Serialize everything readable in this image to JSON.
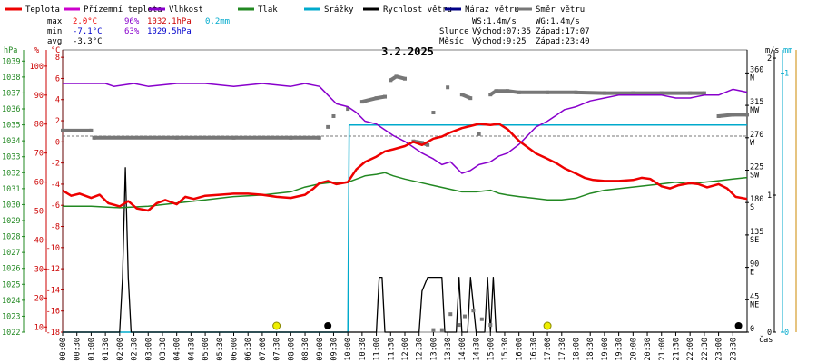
{
  "chart_data": {
    "type": "line",
    "title": "3.2.2025",
    "x_unit_label": "čas",
    "x_ticks": [
      "00:00",
      "00:30",
      "01:00",
      "01:30",
      "02:00",
      "02:30",
      "03:00",
      "03:30",
      "04:00",
      "04:30",
      "05:00",
      "05:30",
      "06:00",
      "06:30",
      "07:00",
      "07:30",
      "08:00",
      "08:30",
      "09:00",
      "09:30",
      "10:00",
      "10:30",
      "11:00",
      "11:30",
      "12:00",
      "12:30",
      "13:00",
      "13:30",
      "14:00",
      "14:30",
      "15:00",
      "15:30",
      "16:00",
      "16:30",
      "17:00",
      "17:30",
      "18:00",
      "18:30",
      "19:00",
      "19:30",
      "20:00",
      "20:30",
      "21:00",
      "21:30",
      "22:00",
      "22:30",
      "23:00",
      "23:30"
    ],
    "legend": [
      {
        "name": "Teplota",
        "color": "#ee0000"
      },
      {
        "name": "Přízemní teplota",
        "color": "#cc00cc"
      },
      {
        "name": "Vlhkost",
        "color": "#8800cc"
      },
      {
        "name": "Tlak",
        "color": "#228822"
      },
      {
        "name": "Srážky",
        "color": "#00aacc"
      },
      {
        "name": "Rychlost větru",
        "color": "#000000"
      },
      {
        "name": "Náraz větru",
        "color": "#000088"
      },
      {
        "name": "Směr větru",
        "color": "#777777"
      }
    ],
    "stats": {
      "max_label": "max",
      "max_temp": "2.0°C",
      "max_hum": "96%",
      "max_press": "1032.1hPa",
      "max_rain": "0.2mm",
      "min_label": "min",
      "min_temp": "-7.1°C",
      "min_hum": "63%",
      "min_press": "1029.5hPa",
      "avg_label": "avg",
      "avg_temp": "-3.3°C"
    },
    "info": {
      "ws": "WS:1.4m/s",
      "wg": "WG:1.4m/s",
      "sun_label": "Slunce",
      "sunrise": "Východ:07:35",
      "sunset": "Západ:17:07",
      "moon_label": "Měsíc",
      "moonrise": "Východ:9:25",
      "moonset": "Západ:23:40"
    },
    "axes": {
      "pressure": {
        "unit": "hPa",
        "ticks": [
          "1039",
          "1038",
          "1037",
          "1036",
          "1035",
          "1034",
          "1033",
          "1032",
          "1031",
          "1030",
          "1029",
          "1028",
          "1027",
          "1026",
          "1025",
          "1024",
          "1023",
          "1022"
        ]
      },
      "humidity": {
        "unit": "%",
        "ticks": [
          "100",
          "90",
          "80",
          "70",
          "60",
          "50",
          "40",
          "30",
          "20",
          "10"
        ]
      },
      "temperature": {
        "unit": "°C",
        "ticks": [
          "8",
          "6",
          "4",
          "2",
          "0",
          "-2",
          "-4",
          "-6",
          "-8",
          "-10",
          "-12",
          "-14",
          "-16",
          "-18"
        ],
        "range": [
          -18,
          8.7
        ]
      },
      "direction": {
        "ticks": [
          "360",
          "315",
          "270",
          "225",
          "180",
          "135",
          "90",
          "45",
          "0"
        ],
        "cardinal": [
          "N",
          "NW",
          "W",
          "SW",
          "S",
          "SE",
          "E",
          "NE",
          ""
        ]
      },
      "wind": {
        "unit": "m/s",
        "ticks": [
          "2",
          "1",
          "0"
        ]
      },
      "rain": {
        "unit": "mm",
        "ticks": [
          "1",
          "0"
        ]
      }
    },
    "series": {
      "temperature": [
        [
          0,
          -4.6
        ],
        [
          0.3,
          -5.1
        ],
        [
          0.6,
          -4.9
        ],
        [
          1.0,
          -5.3
        ],
        [
          1.3,
          -5.0
        ],
        [
          1.6,
          -5.8
        ],
        [
          2.0,
          -6.1
        ],
        [
          2.3,
          -5.6
        ],
        [
          2.6,
          -6.3
        ],
        [
          3.0,
          -6.5
        ],
        [
          3.3,
          -5.8
        ],
        [
          3.6,
          -5.5
        ],
        [
          4.0,
          -5.9
        ],
        [
          4.3,
          -5.2
        ],
        [
          4.6,
          -5.4
        ],
        [
          5.0,
          -5.1
        ],
        [
          5.5,
          -5.0
        ],
        [
          6.0,
          -4.9
        ],
        [
          6.5,
          -4.9
        ],
        [
          7.0,
          -5.0
        ],
        [
          7.5,
          -5.2
        ],
        [
          8.0,
          -5.3
        ],
        [
          8.5,
          -5.0
        ],
        [
          8.8,
          -4.4
        ],
        [
          9.0,
          -3.9
        ],
        [
          9.3,
          -3.7
        ],
        [
          9.6,
          -4.0
        ],
        [
          10.0,
          -3.8
        ],
        [
          10.3,
          -2.6
        ],
        [
          10.6,
          -1.9
        ],
        [
          11.0,
          -1.4
        ],
        [
          11.3,
          -0.9
        ],
        [
          11.6,
          -0.7
        ],
        [
          12.0,
          -0.4
        ],
        [
          12.3,
          0.0
        ],
        [
          12.6,
          -0.3
        ],
        [
          13.0,
          0.3
        ],
        [
          13.3,
          0.5
        ],
        [
          13.6,
          0.9
        ],
        [
          14.0,
          1.3
        ],
        [
          14.3,
          1.5
        ],
        [
          14.6,
          1.7
        ],
        [
          15.0,
          1.6
        ],
        [
          15.3,
          1.7
        ],
        [
          15.6,
          1.2
        ],
        [
          16.0,
          0.1
        ],
        [
          16.3,
          -0.5
        ],
        [
          16.6,
          -1.1
        ],
        [
          17.0,
          -1.6
        ],
        [
          17.3,
          -2.0
        ],
        [
          17.6,
          -2.5
        ],
        [
          18.0,
          -3.0
        ],
        [
          18.3,
          -3.4
        ],
        [
          18.6,
          -3.6
        ],
        [
          19.0,
          -3.7
        ],
        [
          19.5,
          -3.7
        ],
        [
          20.0,
          -3.6
        ],
        [
          20.3,
          -3.4
        ],
        [
          20.6,
          -3.5
        ],
        [
          21.0,
          -4.2
        ],
        [
          21.3,
          -4.4
        ],
        [
          21.6,
          -4.1
        ],
        [
          22.0,
          -3.9
        ],
        [
          22.3,
          -4.0
        ],
        [
          22.6,
          -4.3
        ],
        [
          23.0,
          -4.0
        ],
        [
          23.3,
          -4.4
        ],
        [
          23.6,
          -5.2
        ],
        [
          24.0,
          -5.4
        ]
      ],
      "humidity": [
        [
          0,
          94
        ],
        [
          1.5,
          94
        ],
        [
          1.8,
          93
        ],
        [
          2.5,
          94
        ],
        [
          3.0,
          93
        ],
        [
          4.0,
          94
        ],
        [
          5.0,
          94
        ],
        [
          6.0,
          93
        ],
        [
          7.0,
          94
        ],
        [
          8.0,
          93
        ],
        [
          8.5,
          94
        ],
        [
          9.0,
          93
        ],
        [
          9.3,
          90
        ],
        [
          9.6,
          87
        ],
        [
          10.0,
          86
        ],
        [
          10.3,
          84
        ],
        [
          10.6,
          81
        ],
        [
          11.0,
          80
        ],
        [
          11.3,
          78
        ],
        [
          11.6,
          76
        ],
        [
          12.0,
          74
        ],
        [
          12.3,
          72
        ],
        [
          12.6,
          70
        ],
        [
          13.0,
          68
        ],
        [
          13.3,
          66
        ],
        [
          13.6,
          67
        ],
        [
          14.0,
          63
        ],
        [
          14.3,
          64
        ],
        [
          14.6,
          66
        ],
        [
          15.0,
          67
        ],
        [
          15.3,
          69
        ],
        [
          15.6,
          70
        ],
        [
          16.0,
          73
        ],
        [
          16.3,
          76
        ],
        [
          16.6,
          79
        ],
        [
          17.0,
          81
        ],
        [
          17.3,
          83
        ],
        [
          17.6,
          85
        ],
        [
          18.0,
          86
        ],
        [
          18.5,
          88
        ],
        [
          19.0,
          89
        ],
        [
          19.5,
          90
        ],
        [
          20.0,
          90
        ],
        [
          20.5,
          90
        ],
        [
          21.0,
          90
        ],
        [
          21.5,
          89
        ],
        [
          22.0,
          89
        ],
        [
          22.5,
          90
        ],
        [
          23.0,
          90
        ],
        [
          23.5,
          92
        ],
        [
          24.0,
          91
        ]
      ],
      "pressure": [
        [
          0,
          1029.9
        ],
        [
          1.0,
          1029.9
        ],
        [
          2.0,
          1029.8
        ],
        [
          3.0,
          1029.9
        ],
        [
          4.0,
          1030.1
        ],
        [
          5.0,
          1030.3
        ],
        [
          6.0,
          1030.5
        ],
        [
          7.0,
          1030.6
        ],
        [
          8.0,
          1030.8
        ],
        [
          8.5,
          1031.1
        ],
        [
          9.0,
          1031.3
        ],
        [
          9.5,
          1031.4
        ],
        [
          10.0,
          1031.4
        ],
        [
          10.3,
          1031.6
        ],
        [
          10.6,
          1031.8
        ],
        [
          11.0,
          1031.9
        ],
        [
          11.3,
          1032.0
        ],
        [
          11.6,
          1031.8
        ],
        [
          12.0,
          1031.6
        ],
        [
          12.5,
          1031.4
        ],
        [
          13.0,
          1031.2
        ],
        [
          13.5,
          1031.0
        ],
        [
          14.0,
          1030.8
        ],
        [
          14.5,
          1030.8
        ],
        [
          15.0,
          1030.9
        ],
        [
          15.3,
          1030.7
        ],
        [
          15.6,
          1030.6
        ],
        [
          16.0,
          1030.5
        ],
        [
          16.5,
          1030.4
        ],
        [
          17.0,
          1030.3
        ],
        [
          17.5,
          1030.3
        ],
        [
          18.0,
          1030.4
        ],
        [
          18.5,
          1030.7
        ],
        [
          19.0,
          1030.9
        ],
        [
          19.5,
          1031.0
        ],
        [
          20.0,
          1031.1
        ],
        [
          20.5,
          1031.2
        ],
        [
          21.0,
          1031.3
        ],
        [
          21.5,
          1031.4
        ],
        [
          22.0,
          1031.3
        ],
        [
          22.5,
          1031.4
        ],
        [
          23.0,
          1031.5
        ],
        [
          23.5,
          1031.6
        ],
        [
          24.0,
          1031.7
        ]
      ],
      "rain": [
        [
          0,
          0
        ],
        [
          10.0,
          0
        ],
        [
          10.05,
          0.8
        ],
        [
          24.0,
          0.8
        ]
      ],
      "wind_speed": [
        [
          0,
          0
        ],
        [
          2.0,
          0
        ],
        [
          2.1,
          0.4
        ],
        [
          2.2,
          1.2
        ],
        [
          2.3,
          0.4
        ],
        [
          2.4,
          0
        ],
        [
          11.0,
          0
        ],
        [
          11.1,
          0.4
        ],
        [
          11.2,
          0.4
        ],
        [
          11.3,
          0
        ],
        [
          12.5,
          0
        ],
        [
          12.6,
          0.3
        ],
        [
          12.8,
          0.4
        ],
        [
          13.3,
          0.4
        ],
        [
          13.4,
          0
        ],
        [
          13.8,
          0
        ],
        [
          13.9,
          0.4
        ],
        [
          14.0,
          0
        ],
        [
          14.2,
          0
        ],
        [
          14.3,
          0.4
        ],
        [
          14.5,
          0
        ],
        [
          14.8,
          0
        ],
        [
          14.9,
          0.4
        ],
        [
          15.0,
          0
        ],
        [
          15.1,
          0.4
        ],
        [
          15.2,
          0
        ],
        [
          24.0,
          0
        ]
      ],
      "wind_direction": [
        [
          0,
          280
        ],
        [
          1.0,
          280
        ],
        [
          1.1,
          270
        ],
        [
          4.0,
          270
        ],
        [
          6.0,
          270
        ],
        [
          8.0,
          270
        ],
        [
          9.0,
          270
        ],
        [
          9.3,
          285
        ],
        [
          9.5,
          300
        ],
        [
          10.0,
          310
        ],
        [
          10.5,
          320
        ],
        [
          11.0,
          325
        ],
        [
          11.3,
          327
        ],
        [
          11.5,
          350
        ],
        [
          11.7,
          355
        ],
        [
          12.0,
          352
        ],
        [
          12.3,
          265
        ],
        [
          12.6,
          263
        ],
        [
          12.8,
          260
        ],
        [
          13.0,
          305
        ],
        [
          13.5,
          340
        ],
        [
          14.0,
          330
        ],
        [
          14.3,
          325
        ],
        [
          14.6,
          275
        ],
        [
          15.0,
          330
        ],
        [
          15.2,
          335
        ],
        [
          15.6,
          335
        ],
        [
          16.0,
          333
        ],
        [
          17.0,
          333
        ],
        [
          18.0,
          333
        ],
        [
          19.0,
          332
        ],
        [
          20.0,
          332
        ],
        [
          21.0,
          332
        ],
        [
          22.0,
          332
        ],
        [
          22.5,
          332
        ],
        [
          23.0,
          300
        ],
        [
          23.5,
          302
        ],
        [
          24.0,
          302
        ]
      ],
      "wind_direction_low": [
        [
          13.0,
          3
        ],
        [
          13.3,
          3
        ],
        [
          13.6,
          25
        ],
        [
          13.9,
          10
        ],
        [
          14.1,
          22
        ],
        [
          14.4,
          30
        ],
        [
          14.7,
          18
        ],
        [
          15.0,
          10
        ]
      ]
    },
    "markers": {
      "sun": [
        7.5,
        17.0
      ],
      "moon": [
        9.3,
        23.7
      ]
    }
  }
}
